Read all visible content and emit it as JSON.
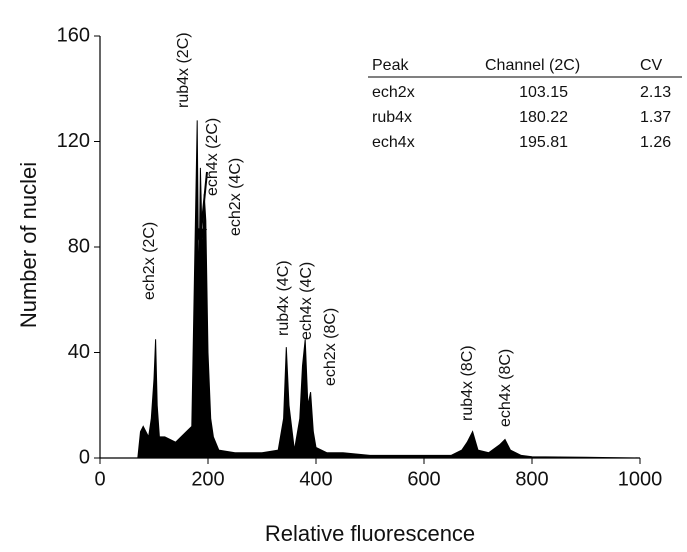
{
  "chart_data": {
    "type": "area",
    "xlabel": "Relative fluorescence",
    "ylabel": "Number of nuclei",
    "color": "#000000",
    "xlim": [
      0,
      1000
    ],
    "xticks": [
      0,
      200,
      400,
      600,
      800,
      1000
    ],
    "ylim": [
      0,
      160
    ],
    "yticks": [
      0,
      40,
      80,
      120,
      160
    ],
    "x": [
      70,
      75,
      80,
      90,
      95,
      100,
      103,
      106,
      110,
      120,
      140,
      160,
      170,
      175,
      180,
      183,
      186,
      190,
      193,
      196,
      200,
      205,
      210,
      220,
      250,
      300,
      330,
      340,
      345,
      350,
      360,
      370,
      375,
      380,
      385,
      390,
      395,
      400,
      420,
      450,
      500,
      600,
      650,
      670,
      680,
      690,
      700,
      720,
      740,
      750,
      760,
      780,
      800,
      900,
      1000
    ],
    "values": [
      0,
      10,
      12,
      8,
      15,
      30,
      45,
      20,
      8,
      8,
      6,
      10,
      12,
      70,
      128,
      60,
      110,
      75,
      100,
      90,
      40,
      15,
      8,
      3,
      2,
      2,
      3,
      15,
      42,
      20,
      3,
      15,
      35,
      45,
      20,
      25,
      10,
      4,
      2,
      2,
      1,
      1,
      1,
      3,
      6,
      10,
      3,
      2,
      5,
      7,
      3,
      1,
      0.5,
      0.3,
      0
    ],
    "annotations": [
      "ech2x (2C)",
      "rub4x (2C)",
      "ech4x (2C)",
      "ech2x (4C)",
      "rub4x (4C)",
      "ech4x (4C)",
      "ech2x (8C)",
      "rub4x (8C)",
      "ech4x (8C)"
    ],
    "table": {
      "columns": [
        "Peak",
        "Channel (2C)",
        "CV"
      ],
      "rows": [
        [
          "ech2x",
          103.15,
          2.13
        ],
        [
          "rub4x",
          180.22,
          1.37
        ],
        [
          "ech4x",
          195.81,
          1.26
        ]
      ]
    }
  }
}
